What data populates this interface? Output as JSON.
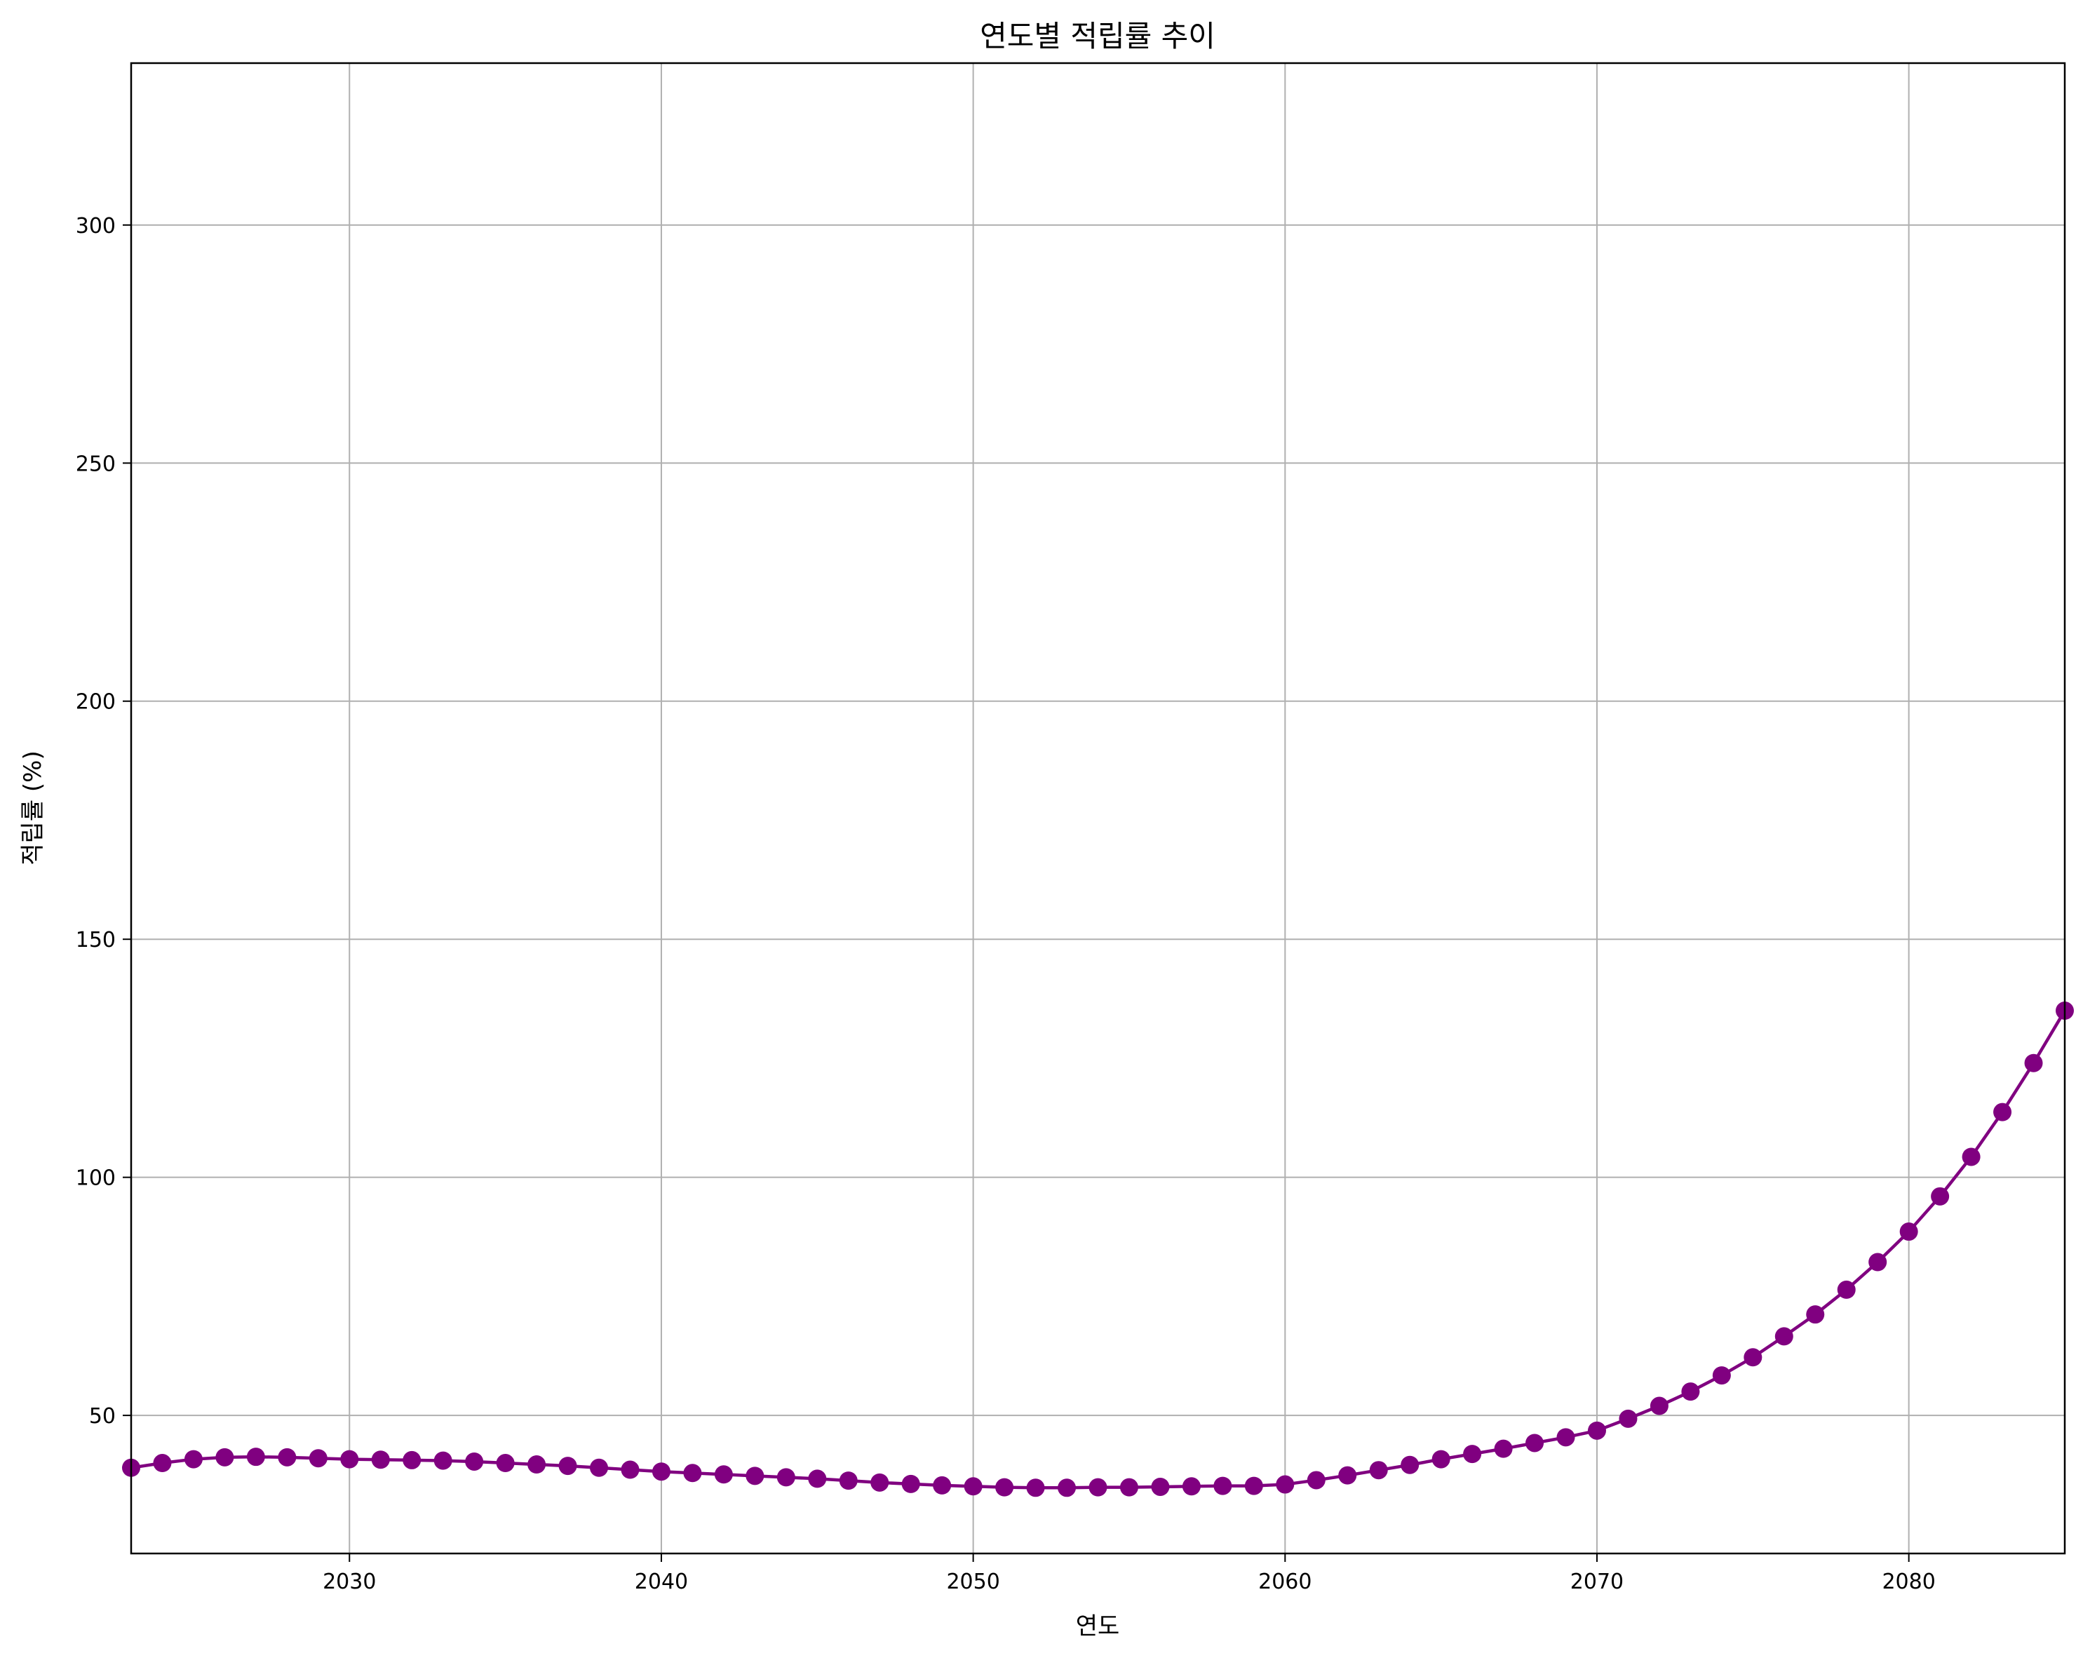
{
  "chart_data": {
    "type": "line",
    "title": "연도별 적립률 추이",
    "xlabel": "연도",
    "ylabel": "적립률 (%)",
    "xlim": [
      2023,
      2085
    ],
    "ylim": [
      21,
      334
    ],
    "xticks": [
      2030,
      2040,
      2050,
      2060,
      2070,
      2080
    ],
    "yticks": [
      50,
      100,
      150,
      200,
      250,
      300
    ],
    "grid": true,
    "color": "#800080",
    "marker": "circle",
    "series": [
      {
        "x": [
          2023,
          2024,
          2025,
          2026,
          2027,
          2028,
          2029,
          2030,
          2031,
          2032,
          2033,
          2034,
          2035,
          2036,
          2037,
          2038,
          2039,
          2040,
          2041,
          2042,
          2043,
          2044,
          2045,
          2046,
          2047,
          2048,
          2049,
          2050,
          2051,
          2052,
          2053,
          2054,
          2055,
          2056,
          2057,
          2058,
          2059,
          2060,
          2061,
          2062,
          2063,
          2064,
          2065,
          2066,
          2067,
          2068,
          2069,
          2070,
          2071,
          2072,
          2073,
          2074,
          2075,
          2076,
          2077,
          2078,
          2079,
          2080,
          2081,
          2082,
          2083,
          2084,
          2085
        ],
        "values": [
          39.0,
          40.0,
          40.8,
          41.2,
          41.3,
          41.2,
          41.0,
          40.8,
          40.7,
          40.6,
          40.5,
          40.3,
          40.0,
          39.7,
          39.4,
          39.0,
          38.6,
          38.2,
          37.9,
          37.6,
          37.3,
          37.0,
          36.7,
          36.3,
          35.9,
          35.6,
          35.3,
          35.1,
          34.9,
          34.8,
          34.8,
          34.9,
          34.9,
          35.0,
          35.1,
          35.2,
          35.2,
          35.5,
          36.4,
          37.4,
          38.5,
          39.6,
          40.8,
          41.9,
          43.0,
          44.2,
          45.4,
          46.8,
          49.3,
          52.0,
          55.0,
          58.4,
          62.2,
          66.6,
          71.2,
          76.4,
          82.2,
          88.6,
          96.0,
          104.3,
          113.7,
          124.0,
          135.0
        ]
      }
    ]
  }
}
